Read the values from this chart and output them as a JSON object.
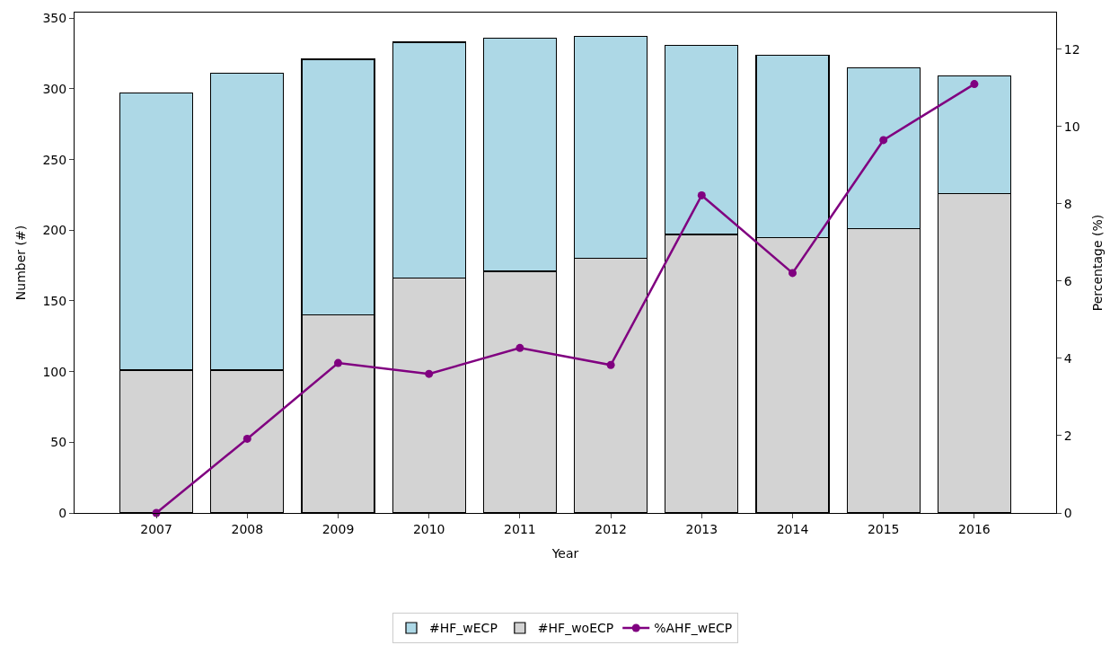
{
  "chart_data": {
    "type": "bar",
    "stacked": true,
    "xlabel": "Year",
    "ylabel": "Number (#)",
    "y2label": "Percentage (%)",
    "categories": [
      "2007",
      "2008",
      "2009",
      "2010",
      "2011",
      "2012",
      "2013",
      "2014",
      "2015",
      "2016"
    ],
    "series": [
      {
        "name": "%AHF_wECP",
        "type": "line",
        "axis": "y2",
        "color": "#800080",
        "marker": "circle",
        "values": [
          0,
          1.92,
          3.88,
          3.6,
          4.27,
          3.83,
          8.22,
          6.21,
          9.65,
          11.1
        ]
      },
      {
        "name": "#HF_woECP",
        "color": "#d3d3d3",
        "values": [
          101,
          101,
          140,
          166,
          171,
          180,
          197,
          195,
          201,
          226
        ]
      },
      {
        "name": "#HF_wECP",
        "color": "#add8e6",
        "values": [
          196,
          210,
          181,
          167,
          165,
          157,
          134,
          129,
          114,
          83
        ]
      }
    ],
    "ylim": [
      0,
      354
    ],
    "yticks": [
      0,
      50,
      100,
      150,
      200,
      250,
      300,
      350
    ],
    "y2lim": [
      0,
      12.95
    ],
    "y2ticks": [
      0,
      2,
      4,
      6,
      8,
      10,
      12
    ],
    "legend": "bottom"
  }
}
